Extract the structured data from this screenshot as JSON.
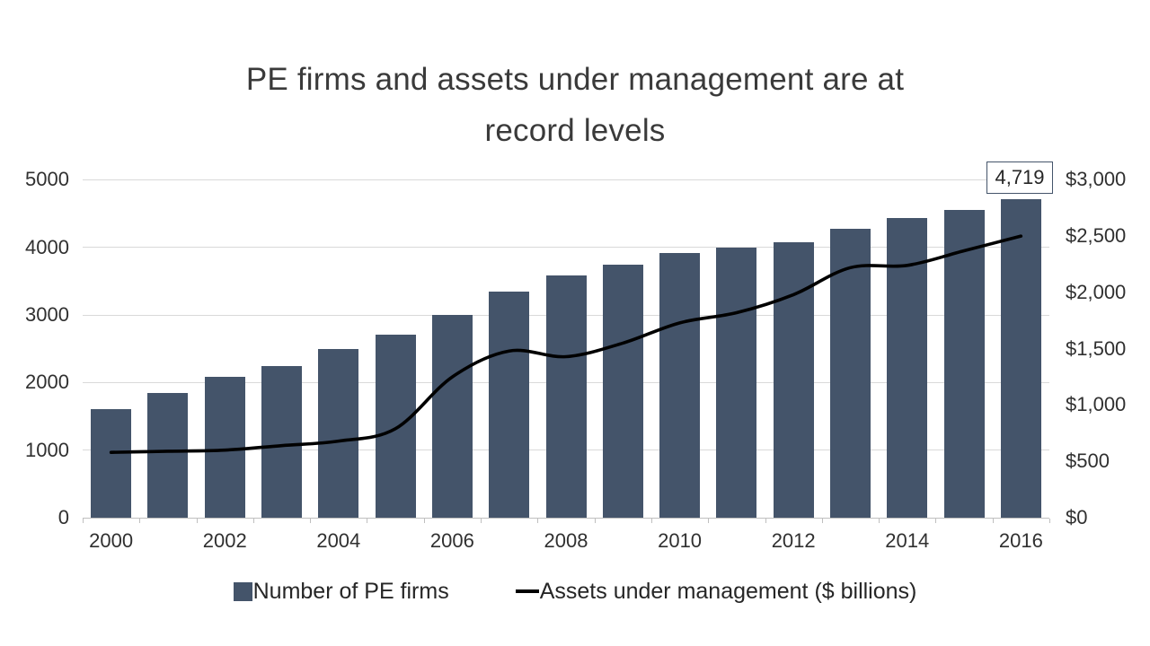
{
  "title": {
    "line1": "PE firms and assets under management are at",
    "line2": "record levels"
  },
  "chart_data": {
    "type": "combo-bar-line",
    "title": "PE firms and assets under management are at record levels",
    "categories": [
      "2000",
      "2001",
      "2002",
      "2003",
      "2004",
      "2005",
      "2006",
      "2007",
      "2008",
      "2009",
      "2010",
      "2011",
      "2012",
      "2013",
      "2014",
      "2015",
      "2016"
    ],
    "series": [
      {
        "name": "Number of PE firms",
        "type": "bar",
        "axis": "left",
        "color": "#44546A",
        "values": [
          1610,
          1850,
          2090,
          2250,
          2490,
          2710,
          3000,
          3340,
          3580,
          3740,
          3910,
          4000,
          4080,
          4270,
          4440,
          4560,
          4719
        ]
      },
      {
        "name": "Assets under management ($ billions)",
        "type": "line",
        "axis": "right",
        "color": "#000000",
        "values": [
          580,
          590,
          600,
          640,
          680,
          790,
          1250,
          1480,
          1430,
          1550,
          1730,
          1820,
          1980,
          2220,
          2240,
          2370,
          2500
        ]
      }
    ],
    "left_axis": {
      "min": 0,
      "max": 5000,
      "tick_labels": [
        "0",
        "1000",
        "2000",
        "3000",
        "4000",
        "5000"
      ]
    },
    "right_axis": {
      "min": 0,
      "max": 3000,
      "tick_labels": [
        "$0",
        "$500",
        "$1,000",
        "$1,500",
        "$2,000",
        "$2,500",
        "$3,000"
      ]
    },
    "x_axis": {
      "tick_labels": [
        "2000",
        "2002",
        "2004",
        "2006",
        "2008",
        "2010",
        "2012",
        "2014",
        "2016"
      ]
    },
    "data_labels": [
      {
        "series": "Number of PE firms",
        "category": "2016",
        "text": "4,719"
      }
    ],
    "legend_position": "bottom",
    "grid": true
  },
  "colors": {
    "background": "#FFFFFF",
    "bar": "#44546A",
    "line": "#000000",
    "gridline": "#D9D9D9",
    "axis_line": "#BFBFBF",
    "text": "#303030",
    "data_label_border": "#44546A"
  }
}
